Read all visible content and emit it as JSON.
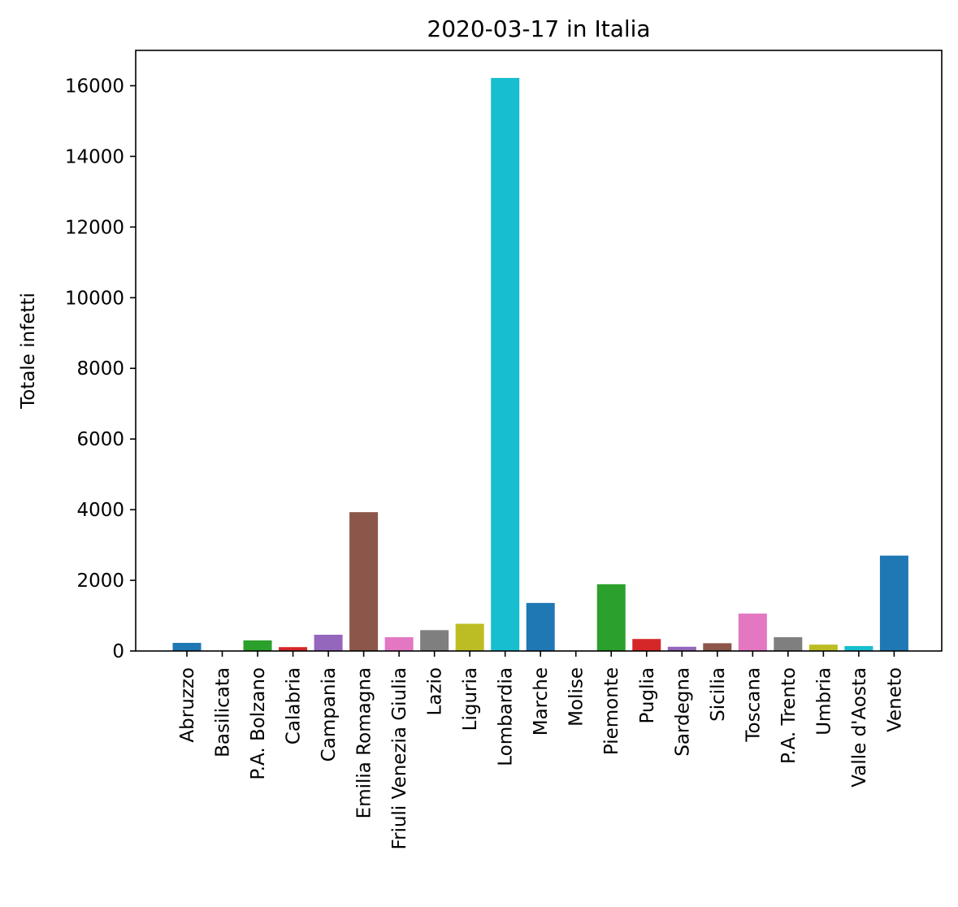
{
  "chart_data": {
    "type": "bar",
    "title": "2020-03-17 in Italia",
    "xlabel": "",
    "ylabel": "Totale infetti",
    "ylim": [
      0,
      17000
    ],
    "yticks": [
      0,
      2000,
      4000,
      6000,
      8000,
      10000,
      12000,
      14000,
      16000
    ],
    "ytick_labels": [
      "0",
      "2000",
      "4000",
      "6000",
      "8000",
      "10000",
      "12000",
      "14000",
      "16000"
    ],
    "grid": false,
    "categories": [
      "Abruzzo",
      "Basilicata",
      "P.A. Bolzano",
      "Calabria",
      "Campania",
      "Emilia Romagna",
      "Friuli Venezia Giulia",
      "Lazio",
      "Liguria",
      "Lombardia",
      "Marche",
      "Molise",
      "Piemonte",
      "Puglia",
      "Sardegna",
      "Sicilia",
      "Toscana",
      "P.A. Trento",
      "Umbria",
      "Valle d'Aosta",
      "Veneto"
    ],
    "values": [
      230,
      10,
      300,
      110,
      460,
      3930,
      390,
      590,
      770,
      16220,
      1360,
      15,
      1890,
      340,
      120,
      220,
      1060,
      390,
      180,
      140,
      2700
    ],
    "colors": [
      "#1f77b4",
      "#ff7f0e",
      "#2ca02c",
      "#d62728",
      "#9467bd",
      "#8c564b",
      "#e377c2",
      "#7f7f7f",
      "#bcbd22",
      "#17becf",
      "#1f77b4",
      "#ff7f0e",
      "#2ca02c",
      "#d62728",
      "#9467bd",
      "#8c564b",
      "#e377c2",
      "#7f7f7f",
      "#bcbd22",
      "#17becf",
      "#1f77b4"
    ]
  }
}
